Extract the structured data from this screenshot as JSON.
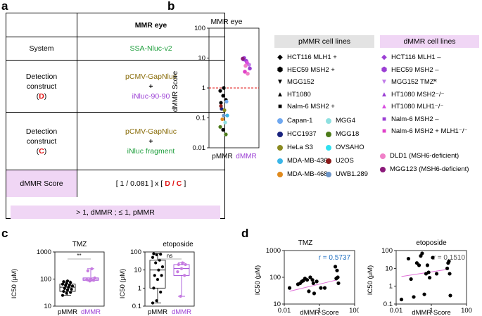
{
  "panels": {
    "a": "a",
    "b": "b",
    "c": "c",
    "d": "d"
  },
  "table_a": {
    "header": {
      "col1": "",
      "col2": "MMR eye"
    },
    "system": {
      "label": "System",
      "value": "SSA-Nluc-v2"
    },
    "detection_d": {
      "label_line1": "Detection",
      "label_line2": "construct",
      "label_code": "D",
      "line1": "pCMV-GapNluc",
      "plus": "+",
      "line2": "iNluc-90-90"
    },
    "detection_c": {
      "label_line1": "Detection",
      "label_line2": "construct",
      "label_code": "C",
      "line1": "pCMV-GapNluc",
      "plus": "+",
      "line2": "iNluc fragment"
    },
    "score": {
      "label": "dMMR Score",
      "formula_prefix": "[ 1 / 0.081 ] x [",
      "formula_d": "D",
      "formula_sep": "/",
      "formula_c": "C",
      "formula_suffix": "]"
    },
    "summary": ">  1, dMMR ;  ≤  1, pMMR"
  },
  "colors": {
    "green": "#1e9e3c",
    "olive": "#8a6d0b",
    "purple": "#9b3fd4",
    "red": "#e01010",
    "pink_bg": "#f0d6f5",
    "grey_bg": "#e3e3e3",
    "blue": "#1f6fc1"
  },
  "legend_b": {
    "pmmr_title": "pMMR cell lines",
    "dmmr_title": "dMMR cell lines",
    "pmmr_items": [
      {
        "marker": "diamond-icon",
        "label": "HCT116 MLH1 +"
      },
      {
        "marker": "hexagon-icon",
        "label": "HEC59 MSH2 +"
      },
      {
        "marker": "triangle-down-icon",
        "label": "MGG152"
      },
      {
        "marker": "triangle-up-icon",
        "label": "HT1080"
      },
      {
        "marker": "square-icon",
        "label": "Nalm-6 MSH2 +"
      }
    ],
    "circle_items": [
      {
        "color": "#6fa8f0",
        "label": "Capan-1"
      },
      {
        "color": "#1a237e",
        "label": "HCC1937"
      },
      {
        "color": "#8a8a20",
        "label": "HeLa S3"
      },
      {
        "color": "#3bb6e8",
        "label": "MDA-MB-436"
      },
      {
        "color": "#e08a1e",
        "label": "MDA-MB-468"
      },
      {
        "color": "#8ee0e0",
        "label": "MGG4"
      },
      {
        "color": "#4b7a18",
        "label": "MGG18"
      },
      {
        "color": "#2fe0f0",
        "label": "OVSAHO"
      },
      {
        "color": "#8b1a1a",
        "label": "U2OS"
      },
      {
        "color": "#6d96c8",
        "label": "UWB1.289"
      }
    ],
    "dmmr_items": [
      {
        "marker": "diamond-icon",
        "label": "HCT116 MLH1 –",
        "color": "#9b3fd4"
      },
      {
        "marker": "hexagon-icon",
        "label": "HEC59 MSH2 –",
        "color": "#9b3fd4"
      },
      {
        "marker": "triangle-down-icon",
        "label": "MGG152 TMZᴿ",
        "color": "#c07ae8"
      },
      {
        "marker": "triangle-up-icon",
        "label": "HT1080 MSH2⁻/⁻",
        "color": "#9b3fd4"
      },
      {
        "marker": "triangle-up-icon",
        "label": "HT1080 MLH1⁻/⁻",
        "color": "#d84de0"
      },
      {
        "marker": "square-icon",
        "label": "Nalm-6 MSH2 –",
        "color": "#9b3fd4"
      },
      {
        "marker": "square-icon",
        "label": "Nalm-6 MSH2 + MLH1⁻/⁻",
        "color": "#e040c8"
      },
      {
        "marker": "circle-icon",
        "label": "DLD1 (MSH6-deficient)",
        "color": "#f080c8"
      },
      {
        "marker": "circle-icon",
        "label": "MGG123 (MSH6-deficient)",
        "color": "#8b1a7a"
      }
    ]
  },
  "chart_data": [
    {
      "id": "b",
      "type": "scatter",
      "title": "MMR eye",
      "ylabel": "dMMR Score",
      "yscale": "log",
      "ylim": [
        0.01,
        100
      ],
      "yticks": [
        "0.01",
        "0.1",
        "1",
        "10",
        "100"
      ],
      "categories": [
        "pMMR",
        "dMMR"
      ],
      "threshold": 1,
      "pmmr_values": [
        0.8,
        0.55,
        0.4,
        0.32,
        1.0,
        0.35,
        0.2,
        0.18,
        0.12,
        0.09,
        0.07,
        0.05,
        0.04,
        0.028,
        0.25,
        0.12
      ],
      "dmmr_values": [
        9,
        8,
        6,
        10,
        7,
        4.5,
        3.5,
        3.0,
        9.5,
        5.5
      ]
    },
    {
      "id": "c-tmz",
      "type": "box",
      "title": "TMZ",
      "ylabel": "IC50 (μM)",
      "yscale": "log",
      "ylim": [
        10,
        1000
      ],
      "yticks": [
        "10",
        "100",
        "1000"
      ],
      "categories": [
        "pMMR",
        "dMMR"
      ],
      "significance": "**",
      "pmmr_values": [
        25,
        30,
        32,
        35,
        40,
        42,
        45,
        50,
        55,
        58,
        60,
        65,
        70,
        75,
        80,
        85
      ],
      "dmmr_values": [
        85,
        90,
        95,
        100,
        110,
        200,
        240
      ]
    },
    {
      "id": "c-eto",
      "type": "box",
      "title": "etoposide",
      "ylabel": "IC50 (μM)",
      "yscale": "log",
      "ylim": [
        0.1,
        100
      ],
      "yticks": [
        "0.1",
        "1",
        "10",
        "100"
      ],
      "categories": [
        "pMMR",
        "dMMR"
      ],
      "significance": "ns",
      "pmmr_values": [
        0.15,
        0.2,
        0.6,
        1,
        3,
        5,
        5,
        10,
        15,
        25,
        35,
        50,
        70,
        75,
        80
      ],
      "dmmr_values": [
        0.35,
        5,
        8,
        12,
        20,
        20,
        25
      ]
    },
    {
      "id": "d-tmz",
      "type": "scatter",
      "title": "TMZ",
      "xlabel": "dMMR Score",
      "ylabel": "IC50 (μM)",
      "xscale": "log",
      "yscale": "log",
      "xlim": [
        0.01,
        100
      ],
      "ylim": [
        10,
        1000
      ],
      "xticks": [
        "0.01",
        "1",
        "100"
      ],
      "yticks": [
        "10",
        "100",
        "1000"
      ],
      "r_label": "r = 0.5737",
      "points": [
        [
          0.02,
          40
        ],
        [
          0.06,
          55
        ],
        [
          0.08,
          60
        ],
        [
          0.1,
          70
        ],
        [
          0.12,
          75
        ],
        [
          0.15,
          90
        ],
        [
          0.2,
          80
        ],
        [
          0.25,
          30
        ],
        [
          0.3,
          100
        ],
        [
          0.4,
          80
        ],
        [
          0.45,
          60
        ],
        [
          0.5,
          25
        ],
        [
          0.7,
          70
        ],
        [
          1.2,
          40
        ],
        [
          2,
          40
        ],
        [
          8,
          250
        ],
        [
          9,
          90
        ],
        [
          10,
          180
        ],
        [
          11,
          100
        ],
        [
          12,
          60
        ]
      ],
      "fit": [
        [
          0.02,
          30
        ],
        [
          10,
          80
        ]
      ]
    },
    {
      "id": "d-eto",
      "type": "scatter",
      "title": "etoposide",
      "xlabel": "dMMR Score",
      "ylabel": "IC50 (μM)",
      "xscale": "log",
      "yscale": "log",
      "xlim": [
        0.01,
        100
      ],
      "ylim": [
        0.1,
        100
      ],
      "xticks": [
        "0.01",
        "1",
        "100"
      ],
      "yticks": [
        "0.1",
        "1",
        "10",
        "100"
      ],
      "r_label": "r = 0.1510",
      "points": [
        [
          0.02,
          0.18
        ],
        [
          0.05,
          35
        ],
        [
          0.07,
          2.5
        ],
        [
          0.1,
          0.25
        ],
        [
          0.15,
          20
        ],
        [
          0.2,
          15
        ],
        [
          0.25,
          50
        ],
        [
          0.3,
          70
        ],
        [
          0.4,
          0.35
        ],
        [
          0.5,
          5
        ],
        [
          0.6,
          15
        ],
        [
          0.7,
          6
        ],
        [
          0.8,
          3
        ],
        [
          1.2,
          40
        ],
        [
          2,
          5
        ],
        [
          8,
          10
        ],
        [
          9,
          20
        ],
        [
          10,
          25
        ],
        [
          11,
          5
        ],
        [
          12,
          0.3
        ]
      ],
      "fit": [
        [
          0.02,
          3.5
        ],
        [
          10,
          9
        ]
      ]
    }
  ]
}
